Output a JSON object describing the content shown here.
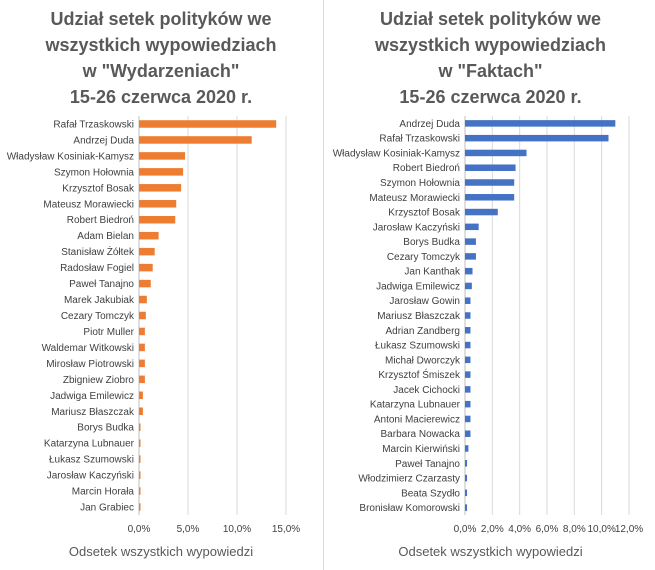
{
  "chart_data": [
    {
      "type": "bar",
      "orientation": "horizontal",
      "title_lines": [
        "Udział setek polityków we",
        "wszystkich wypowiedziach",
        "w \"Wydarzeniach\"",
        "15-26 czerwca 2020 r."
      ],
      "xlabel": "Odsetek wszystkich wypowiedzi",
      "ylabel": "",
      "color": "#ED7D31",
      "xlim": [
        0,
        15
      ],
      "xticks": [
        0,
        5,
        10,
        15
      ],
      "xtick_labels": [
        "0,0%",
        "5,0%",
        "10,0%",
        "15,0%"
      ],
      "categories": [
        "Rafał Trzaskowski",
        "Andrzej Duda",
        "Władysław Kosiniak-Kamysz",
        "Szymon Hołownia",
        "Krzysztof Bosak",
        "Mateusz Morawiecki",
        "Robert Biedroń",
        "Adam Bielan",
        "Stanisław Żółtek",
        "Radosław Fogiel",
        "Paweł Tanajno",
        "Marek Jakubiak",
        "Cezary Tomczyk",
        "Piotr Muller",
        "Waldemar Witkowski",
        "Mirosław Piotrowski",
        "Zbigniew Ziobro",
        "Jadwiga Emilewicz",
        "Mariusz Błaszczak",
        "Borys Budka",
        "Katarzyna Lubnauer",
        "Łukasz Szumowski",
        "Jarosław Kaczyński",
        "Marcin Horała",
        "Jan Grabiec"
      ],
      "values": [
        14.0,
        11.5,
        4.7,
        4.5,
        4.3,
        3.8,
        3.7,
        2.0,
        1.6,
        1.4,
        1.2,
        0.8,
        0.7,
        0.6,
        0.6,
        0.6,
        0.6,
        0.4,
        0.4,
        0.15,
        0.15,
        0.15,
        0.15,
        0.15,
        0.15
      ]
    },
    {
      "type": "bar",
      "orientation": "horizontal",
      "title_lines": [
        "Udział setek polityków we",
        "wszystkich wypowiedziach",
        "w \"Faktach\"",
        "15-26 czerwca 2020 r."
      ],
      "xlabel": "Odsetek wszystkich wypowiedzi",
      "ylabel": "",
      "color": "#4472C4",
      "xlim": [
        0,
        12
      ],
      "xticks": [
        0,
        2,
        4,
        6,
        8,
        10,
        12
      ],
      "xtick_labels": [
        "0,0%",
        "2,0%",
        "4,0%",
        "6,0%",
        "8,0%",
        "10,0%",
        "12,0%"
      ],
      "categories": [
        "Andrzej Duda",
        "Rafał Trzaskowski",
        "Władysław Kosiniak-Kamysz",
        "Robert Biedroń",
        "Szymon Hołownia",
        "Mateusz Morawiecki",
        "Krzysztof Bosak",
        "Jarosław Kaczyński",
        "Borys Budka",
        "Cezary Tomczyk",
        "Jan Kanthak",
        "Jadwiga Emilewicz",
        "Jarosław Gowin",
        "Mariusz Błaszczak",
        "Adrian Zandberg",
        "Łukasz Szumowski",
        "Michał Dworczyk",
        "Krzysztof Śmiszek",
        "Jacek Cichocki",
        "Katarzyna Lubnauer",
        "Antoni Macierewicz",
        "Barbara Nowacka",
        "Marcin Kierwiński",
        "Paweł Tanajno",
        "Włodzimierz Czarzasty",
        "Beata Szydło",
        "Bronisław Komorowski"
      ],
      "values": [
        11.0,
        10.5,
        4.5,
        3.7,
        3.6,
        3.6,
        2.4,
        1.0,
        0.8,
        0.8,
        0.55,
        0.5,
        0.4,
        0.4,
        0.4,
        0.4,
        0.4,
        0.4,
        0.4,
        0.4,
        0.4,
        0.4,
        0.25,
        0.15,
        0.15,
        0.15,
        0.15
      ]
    }
  ]
}
